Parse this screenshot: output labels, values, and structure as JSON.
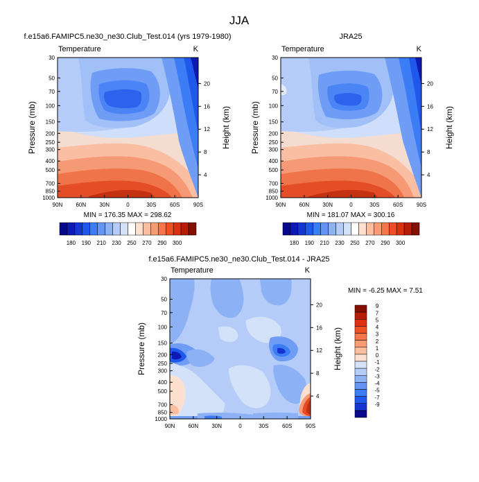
{
  "figure_title": "JJA",
  "chart_data": [
    {
      "type": "contour",
      "title": "f.e15a6.FAMIPC5.ne30_ne30.Club_Test.014 (yrs 1979-1980)",
      "subtitle_left": "Temperature",
      "subtitle_right": "K",
      "xlabel": "",
      "ylabel": "Pressure (mb)",
      "ylabel_right": "Height (km)",
      "x_ticks": [
        "90N",
        "60N",
        "30N",
        "0",
        "30S",
        "60S",
        "90S"
      ],
      "y_ticks": [
        "30",
        "50",
        "70",
        "100",
        "150",
        "200",
        "250",
        "300",
        "400",
        "500",
        "700",
        "850",
        "1000"
      ],
      "height_ticks": [
        "20",
        "16",
        "12",
        "8",
        "4"
      ],
      "min_max_text": "MIN = 176.35  MAX = 298.62",
      "min": 176.35,
      "max": 298.62
    },
    {
      "type": "contour",
      "title": "JRA25",
      "subtitle_left": "Temperature",
      "subtitle_right": "K",
      "ylabel": "Pressure (mb)",
      "ylabel_right": "Height (km)",
      "x_ticks": [
        "90N",
        "60N",
        "30N",
        "0",
        "30S",
        "60S",
        "90S"
      ],
      "y_ticks": [
        "30",
        "50",
        "70",
        "100",
        "150",
        "200",
        "250",
        "300",
        "400",
        "500",
        "700",
        "850",
        "1000"
      ],
      "height_ticks": [
        "20",
        "16",
        "12",
        "8",
        "4"
      ],
      "min_max_text": "MIN = 181.07  MAX = 300.16",
      "min": 181.07,
      "max": 300.16
    },
    {
      "type": "contour",
      "title": "f.e15a6.FAMIPC5.ne30_ne30.Club_Test.014 - JRA25",
      "subtitle_left": "Temperature",
      "subtitle_right": "K",
      "ylabel": "Pressure (mb)",
      "ylabel_right": "Height (km)",
      "x_ticks": [
        "90N",
        "60N",
        "30N",
        "0",
        "30S",
        "60S",
        "90S"
      ],
      "y_ticks": [
        "30",
        "50",
        "70",
        "100",
        "150",
        "200",
        "250",
        "300",
        "400",
        "500",
        "700",
        "850",
        "1000"
      ],
      "height_ticks": [
        "20",
        "16",
        "12",
        "8",
        "4"
      ],
      "min_max_text": "MIN =  -6.25  MAX =   7.51",
      "min": -6.25,
      "max": 7.51
    }
  ],
  "colorbar_temp": {
    "labels": [
      "180",
      "190",
      "210",
      "230",
      "250",
      "270",
      "290",
      "300"
    ],
    "colors": [
      "#08088c",
      "#0d1ab3",
      "#1437d4",
      "#1f59eb",
      "#3c7cf4",
      "#6495f5",
      "#8cb2f5",
      "#b4ccf7",
      "#d4e2f9",
      "#ffffff",
      "#fde0cf",
      "#fbbfa0",
      "#f89b72",
      "#f4764a",
      "#ee4f24",
      "#dc3010",
      "#b51d06",
      "#821003"
    ]
  },
  "colorbar_diff": {
    "labels": [
      "9",
      "7",
      "5",
      "4",
      "3",
      "2",
      "1",
      "0",
      "-1",
      "-2",
      "-3",
      "-4",
      "-5",
      "-7",
      "-9"
    ],
    "colors": [
      "#821003",
      "#b51d06",
      "#dc3010",
      "#ee4f24",
      "#f4764a",
      "#f89b72",
      "#fbbfa0",
      "#fde0cf",
      "#d4e2f9",
      "#b4ccf7",
      "#8cb2f5",
      "#6495f5",
      "#3c7cf4",
      "#1f59eb",
      "#1437d4",
      "#08088c"
    ]
  }
}
